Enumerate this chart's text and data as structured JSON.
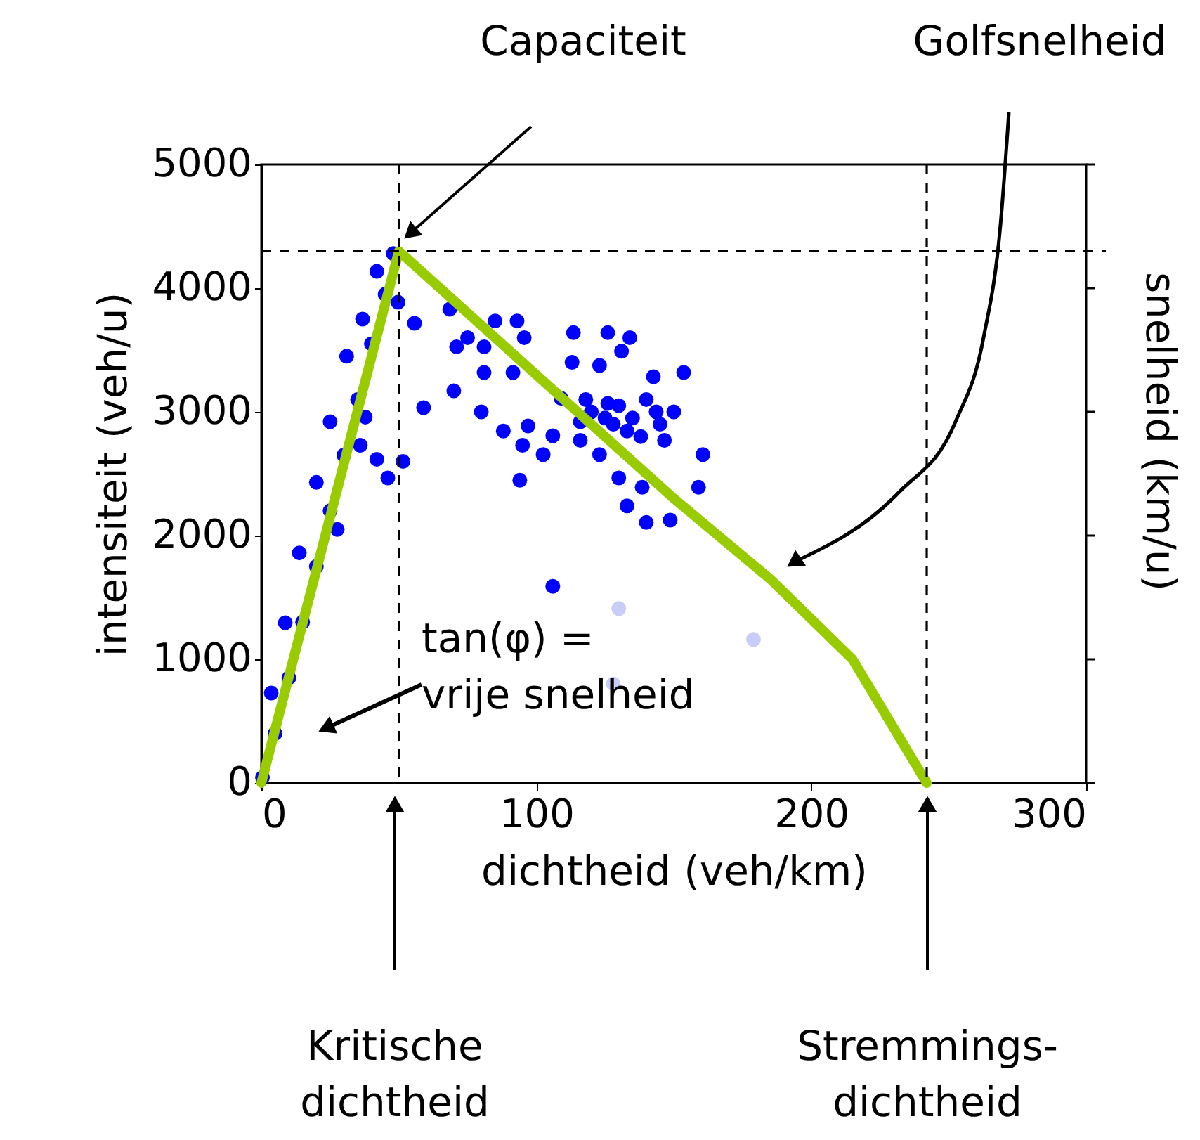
{
  "chart_data": {
    "type": "scatter",
    "xlabel": "dichtheid (veh/km)",
    "ylabel": "intensiteit (veh/u)",
    "y2label": "snelheid (km/u)",
    "xlim": [
      0,
      300
    ],
    "xticks": [
      0,
      100,
      200,
      300
    ],
    "ylim": [
      0,
      5000
    ],
    "yticks": [
      0,
      1000,
      2000,
      3000,
      4000,
      5000
    ],
    "grid": false,
    "series": [
      {
        "color": "#0000ff",
        "marker": "circle",
        "x": [
          0.4,
          3.6,
          8.7,
          13.8,
          20,
          25,
          31,
          36.8,
          42,
          48,
          5,
          10,
          15,
          20,
          25,
          30,
          35,
          40,
          45,
          37.8,
          36,
          42,
          46,
          51.5,
          27.6,
          49.7,
          55.7,
          68.5,
          75,
          71,
          81,
          81,
          91.5,
          70,
          59,
          80,
          88,
          97,
          95,
          102.5,
          94,
          93,
          85,
          95.6,
          113.5,
          126,
          134,
          131,
          113,
          123,
          142.6,
          153.6,
          109,
          126,
          143.6,
          116,
          133,
          146.6,
          160.6,
          123,
          130,
          138.5,
          159,
          133,
          140,
          148.7,
          106,
          116,
          120,
          125,
          130,
          135,
          140,
          128,
          138,
          145,
          118,
          150,
          106
        ],
        "values": [
          45,
          727,
          1295,
          1860,
          2430,
          2920,
          3450,
          3750,
          4136,
          4280,
          400,
          850,
          1300,
          1750,
          2200,
          2650,
          3100,
          3550,
          3950,
          2958,
          2730,
          2617,
          2466,
          2600,
          2050,
          3886,
          3716,
          3830,
          3600,
          3526,
          3526,
          3318,
          3318,
          3170,
          3034,
          3000,
          2845,
          2886,
          2730,
          2655,
          2447,
          3735,
          3735,
          3600,
          3640,
          3640,
          3600,
          3490,
          3400,
          3375,
          3284,
          3318,
          3110,
          3068,
          3000,
          2920,
          2845,
          2770,
          2655,
          2655,
          2466,
          2390,
          2390,
          2240,
          2106,
          2125,
          2807,
          2770,
          3000,
          2950,
          3050,
          2950,
          3100,
          2900,
          2800,
          2900,
          3100,
          3000,
          1590
        ]
      },
      {
        "color": "#c8cdf8",
        "marker": "circle",
        "x": [
          130,
          128,
          179
        ],
        "values": [
          1410,
          800,
          1160
        ]
      },
      {
        "type": "line",
        "color": "#99cc00",
        "x": [
          0,
          50,
          100,
          150,
          185,
          215,
          242
        ],
        "values": [
          0,
          4300,
          3300,
          2300,
          1650,
          1000,
          0
        ]
      }
    ],
    "ref_lines": [
      {
        "axis": "x",
        "value": 50,
        "color": "#000000",
        "line_style": "dashed"
      },
      {
        "axis": "x",
        "value": 242,
        "color": "#000000",
        "line_style": "dashed"
      },
      {
        "axis": "y",
        "value": 4300,
        "color": "#000000",
        "line_style": "dashed"
      }
    ],
    "annotations": [
      "Capaciteit",
      "Golfsnelheid",
      "tan(φ) =\nvrije snelheid",
      "Kritische\ndichtheid",
      "Stremmings-\ndichtheid"
    ]
  }
}
